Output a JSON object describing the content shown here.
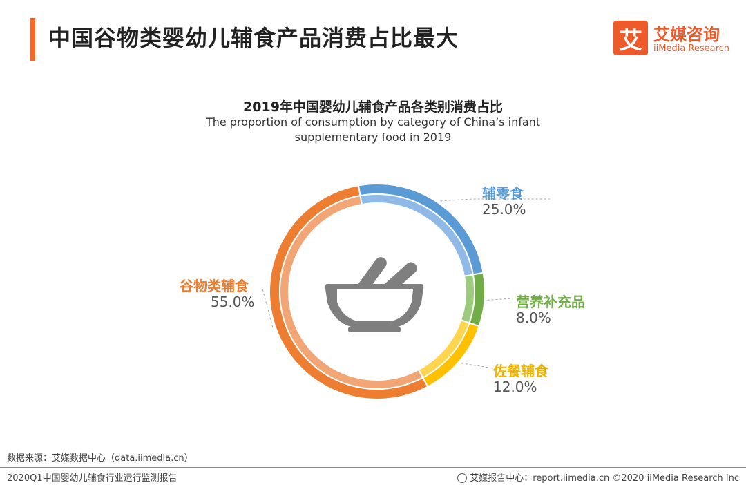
{
  "header": {
    "title": "中国谷物类婴幼儿辅食产品消费占比最大",
    "accent_color": "#ee6a2a"
  },
  "logo": {
    "mark": "艾",
    "name_cn": "艾媒咨询",
    "name_en": "iiMedia Research",
    "color": "#ee5b2a"
  },
  "chart_data": {
    "type": "pie",
    "title": "2019年中国婴幼儿辅食产品各类别消费占比",
    "subtitle": "The proportion of consumption by category of China’s infant supplementary food in 2019",
    "slices": [
      {
        "label": "辅零食",
        "value": 25.0,
        "display": "25.0%",
        "color": "#5b9bd5",
        "inner_color": "#8fb9e6"
      },
      {
        "label": "营养补充品",
        "value": 8.0,
        "display": "8.0%",
        "color": "#70ad47",
        "inner_color": "#9ccb7e"
      },
      {
        "label": "佐餐辅食",
        "value": 12.0,
        "display": "12.0%",
        "color": "#ffc000",
        "inner_color": "#ffd54f"
      },
      {
        "label": "谷物类辅食",
        "value": 55.0,
        "display": "55.0%",
        "color": "#ed7d31",
        "inner_color": "#f2a675"
      }
    ],
    "center_icon": "bowl-chopsticks-icon"
  },
  "footer": {
    "source": "数据来源：艾媒数据中心（data.iimedia.cn）",
    "report": "2020Q1中国婴幼儿辅食行业运行监测报告",
    "report_center": "艾媒报告中心：report.iimedia.cn  ©2020  iiMedia Research  Inc"
  }
}
